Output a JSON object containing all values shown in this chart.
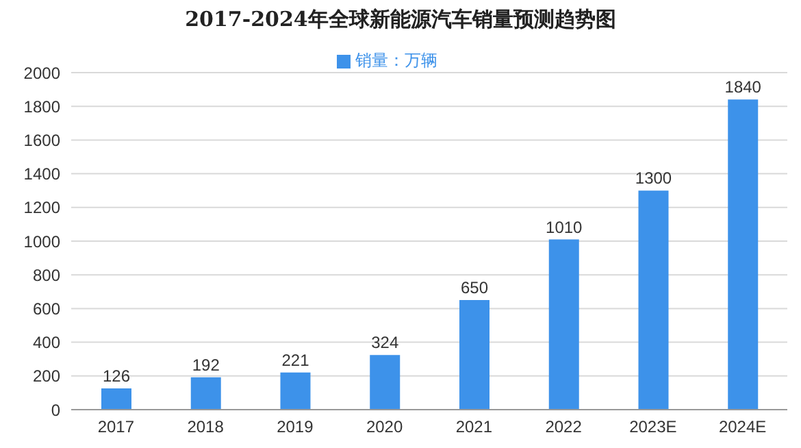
{
  "chart_data": {
    "type": "bar",
    "title": "2017-2024年全球新能源汽车销量预测趋势图",
    "categories": [
      "2017",
      "2018",
      "2019",
      "2020",
      "2021",
      "2022",
      "2023E",
      "2024E"
    ],
    "series": [
      {
        "name": "销量：万辆",
        "color": "#3d92ea",
        "values": [
          126,
          192,
          221,
          324,
          650,
          1010,
          1300,
          1840
        ]
      }
    ],
    "ylim": [
      0,
      2000
    ],
    "yticks": [
      0,
      200,
      400,
      600,
      800,
      1000,
      1200,
      1400,
      1600,
      1800,
      2000
    ],
    "grid": "y",
    "legend": "top",
    "data_labels": true
  }
}
